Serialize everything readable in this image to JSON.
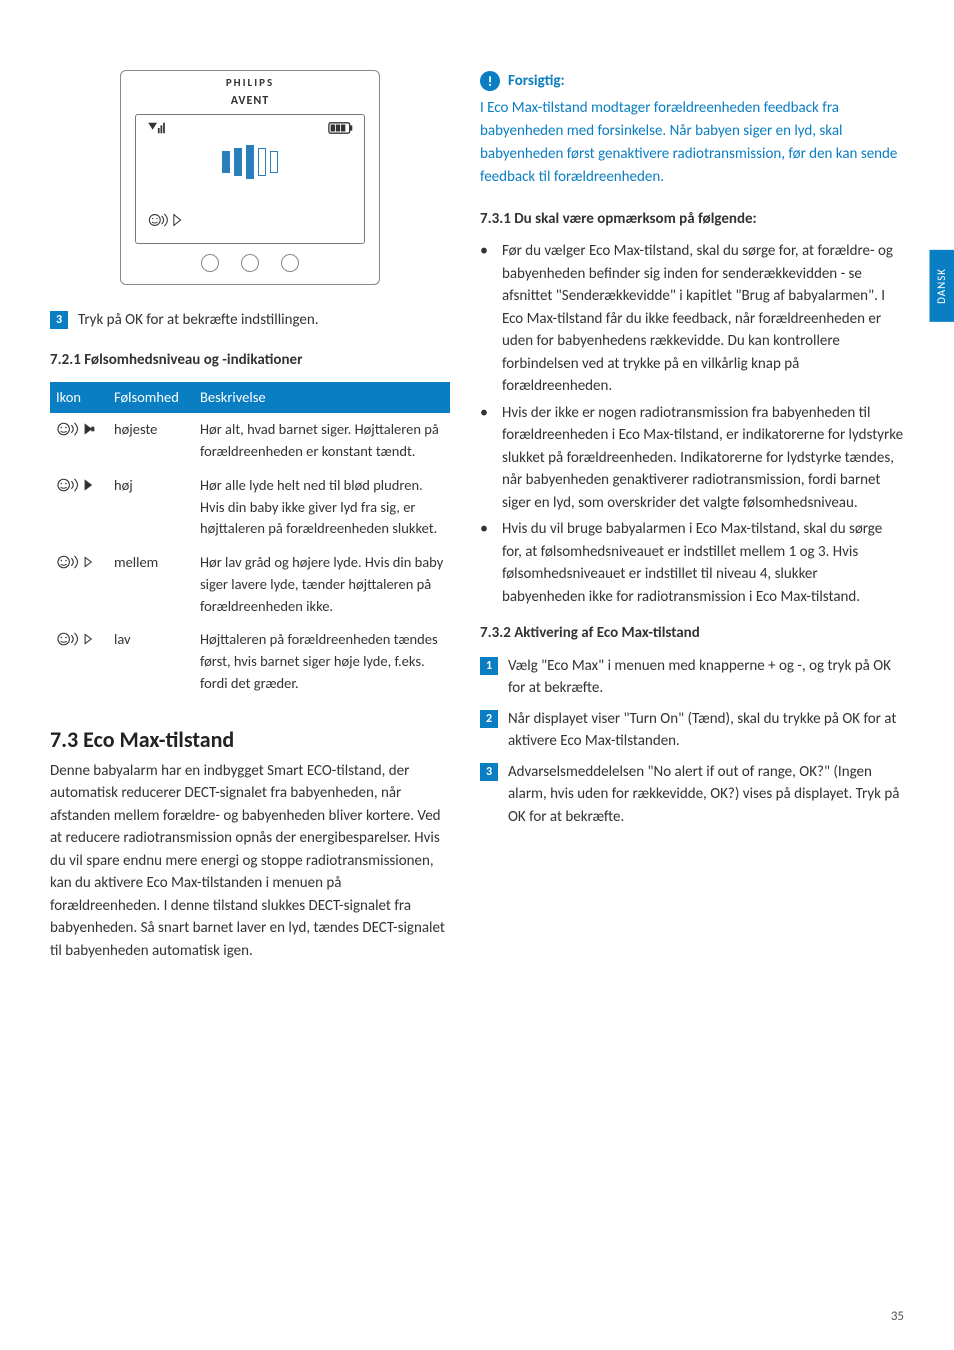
{
  "colors": {
    "accent": "#0a7ec2",
    "text": "#333333",
    "background": "#ffffff"
  },
  "side_tab": "DANSK",
  "page_number": "35",
  "device": {
    "brand_top": "PHILIPS",
    "brand_bottom": "AVENT"
  },
  "left": {
    "step3_text": "Tryk på OK for at bekræfte indstillingen.",
    "sub_721": "7.2.1 Følsomhedsniveau og -indikationer",
    "table": {
      "headers": {
        "icon": "Ikon",
        "level": "Følsomhed",
        "desc": "Beskrivelse"
      },
      "rows": [
        {
          "level": "højeste",
          "desc": "Hør alt, hvad barnet siger. Højttaleren på forældreenheden er konstant tændt.",
          "fill": 4
        },
        {
          "level": "høj",
          "desc": "Hør alle lyde helt ned til blød pludren. Hvis din baby ikke giver lyd fra sig, er højttaleren på forældreenheden slukket.",
          "fill": 3
        },
        {
          "level": "mellem",
          "desc": "Hør lav gråd og højere lyde. Hvis din baby siger lavere lyde, tænder højttaleren på forældreenheden ikke.",
          "fill": 2
        },
        {
          "level": "lav",
          "desc": "Højttaleren på forældreenheden tændes først, hvis barnet siger høje lyde, f.eks. fordi det græder.",
          "fill": 1
        }
      ]
    },
    "h73": "7.3 Eco Max-tilstand",
    "p73": "Denne babyalarm har en indbygget Smart ECO-tilstand, der automatisk reducerer DECT-signalet fra babyenheden, når afstanden mellem forældre- og babyenheden bliver kortere. Ved at reducere radiotransmission opnås der energibesparelser. Hvis du vil spare endnu mere energi og stoppe radiotransmissionen, kan du aktivere Eco Max-tilstanden i menuen på forældreenheden. I denne tilstand slukkes DECT-signalet fra babyenheden. Så snart barnet laver en lyd, tændes DECT-signalet til babyenheden automatisk igen."
  },
  "right": {
    "warn_title": "Forsigtig:",
    "warn_text": "I Eco Max-tilstand modtager forældreenheden feedback fra babyenheden med forsinkelse. Når babyen siger en lyd, skal babyenheden først genaktivere radiotransmission, før den kan sende feedback til forældreenheden.",
    "sub_731": "7.3.1 Du skal være opmærksom på følgende:",
    "bullets_731": [
      "Før du vælger Eco Max-tilstand, skal du sørge for, at forældre- og babyenheden befinder sig inden for senderækkevidden - se afsnittet \"Senderækkevidde\" i kapitlet \"Brug af babyalarmen\". I Eco Max-tilstand får du ikke feedback, når forældreenheden er uden for babyenhedens rækkevidde. Du kan kontrollere forbindelsen ved at trykke på en vilkårlig knap på forældreenheden.",
      "Hvis der ikke er nogen radiotransmission fra babyenheden til forældreenheden i Eco Max-tilstand, er indikatorerne for lydstyrke slukket på forældreenheden. Indikatorerne for lydstyrke tændes, når babyenheden genaktiverer radiotransmission, fordi barnet siger en lyd, som overskrider det valgte følsomhedsniveau.",
      "Hvis du vil bruge babyalarmen i Eco Max-tilstand, skal du sørge for, at følsomhedsniveauet er indstillet mellem 1 og 3. Hvis følsomhedsniveauet er indstillet til niveau 4, slukker babyenheden ikke for radiotransmission i Eco Max-tilstand."
    ],
    "sub_732": "7.3.2 Aktivering af Eco Max-tilstand",
    "steps_732": [
      "Vælg \"Eco Max\" i menuen med knapperne + og -, og tryk på OK for at bekræfte.",
      "Når displayet viser \"Turn On\" (Tænd), skal du trykke på OK for at aktivere Eco Max-tilstanden.",
      "Advarselsmeddelelsen \"No alert if out of range, OK?\" (Ingen alarm, hvis uden for rækkevidde, OK?) vises på displayet. Tryk på OK for at bekræfte."
    ]
  }
}
